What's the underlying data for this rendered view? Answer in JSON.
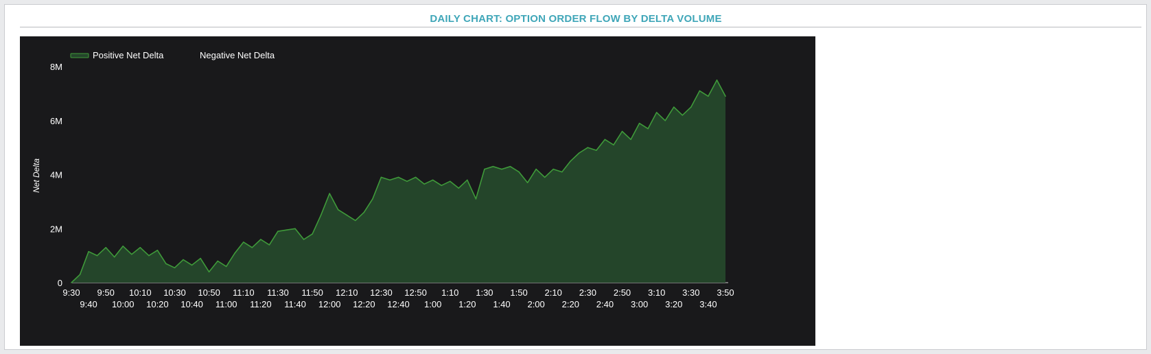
{
  "page": {
    "title": "DAILY CHART: OPTION ORDER FLOW BY DELTA VOLUME"
  },
  "colors": {
    "title": "#3fa6b8",
    "chart_bg": "#19191b",
    "positive_fill": "#24452a",
    "positive_line": "#3f9a3a",
    "text": "#ffffff"
  },
  "chart_data": {
    "type": "area",
    "title": "",
    "xlabel": "",
    "ylabel": "Net Delta",
    "legend": {
      "position": "top-left",
      "entries": [
        "Positive Net Delta",
        "Negative Net Delta"
      ]
    },
    "ylim": [
      0,
      8000000
    ],
    "yticks": [
      0,
      2000000,
      4000000,
      6000000,
      8000000
    ],
    "ytick_labels": [
      "0",
      "2M",
      "4M",
      "6M",
      "8M"
    ],
    "xticks": [
      "9:30",
      "9:40",
      "9:50",
      "10:00",
      "10:10",
      "10:20",
      "10:30",
      "10:40",
      "10:50",
      "11:00",
      "11:10",
      "11:20",
      "11:30",
      "11:40",
      "11:50",
      "12:00",
      "12:10",
      "12:20",
      "12:30",
      "12:40",
      "12:50",
      "1:00",
      "1:10",
      "1:20",
      "1:30",
      "1:40",
      "1:50",
      "2:00",
      "2:10",
      "2:20",
      "2:30",
      "2:40",
      "2:50",
      "3:00",
      "3:10",
      "3:20",
      "3:30",
      "3:40",
      "3:50"
    ],
    "grid": false,
    "series": [
      {
        "name": "Positive Net Delta",
        "x": [
          "9:30",
          "9:35",
          "9:40",
          "9:45",
          "9:50",
          "9:55",
          "10:00",
          "10:05",
          "10:10",
          "10:15",
          "10:20",
          "10:25",
          "10:30",
          "10:35",
          "10:40",
          "10:45",
          "10:50",
          "10:55",
          "11:00",
          "11:05",
          "11:10",
          "11:15",
          "11:20",
          "11:25",
          "11:30",
          "11:35",
          "11:40",
          "11:45",
          "11:50",
          "11:55",
          "12:00",
          "12:05",
          "12:10",
          "12:15",
          "12:20",
          "12:25",
          "12:30",
          "12:35",
          "12:40",
          "12:45",
          "12:50",
          "12:55",
          "1:00",
          "1:05",
          "1:10",
          "1:15",
          "1:20",
          "1:25",
          "1:30",
          "1:35",
          "1:40",
          "1:45",
          "1:50",
          "1:55",
          "2:00",
          "2:05",
          "2:10",
          "2:15",
          "2:20",
          "2:25",
          "2:30",
          "2:35",
          "2:40",
          "2:45",
          "2:50",
          "2:55",
          "3:00",
          "3:05",
          "3:10",
          "3:15",
          "3:20",
          "3:25",
          "3:30",
          "3:35",
          "3:40",
          "3:45",
          "3:50"
        ],
        "values": [
          0,
          300000,
          1150000,
          1000000,
          1300000,
          950000,
          1350000,
          1050000,
          1300000,
          1000000,
          1200000,
          700000,
          550000,
          850000,
          650000,
          900000,
          400000,
          800000,
          600000,
          1100000,
          1500000,
          1300000,
          1600000,
          1400000,
          1900000,
          1950000,
          2000000,
          1600000,
          1800000,
          2500000,
          3300000,
          2700000,
          2500000,
          2300000,
          2600000,
          3100000,
          3900000,
          3800000,
          3900000,
          3750000,
          3900000,
          3650000,
          3800000,
          3600000,
          3750000,
          3500000,
          3800000,
          3100000,
          4200000,
          4300000,
          4200000,
          4300000,
          4100000,
          3700000,
          4200000,
          3900000,
          4200000,
          4100000,
          4500000,
          4800000,
          5000000,
          4900000,
          5300000,
          5100000,
          5600000,
          5300000,
          5900000,
          5700000,
          6300000,
          6000000,
          6500000,
          6200000,
          6500000,
          7100000,
          6900000,
          7500000,
          6900000
        ]
      },
      {
        "name": "Negative Net Delta",
        "x": [],
        "values": []
      }
    ]
  }
}
